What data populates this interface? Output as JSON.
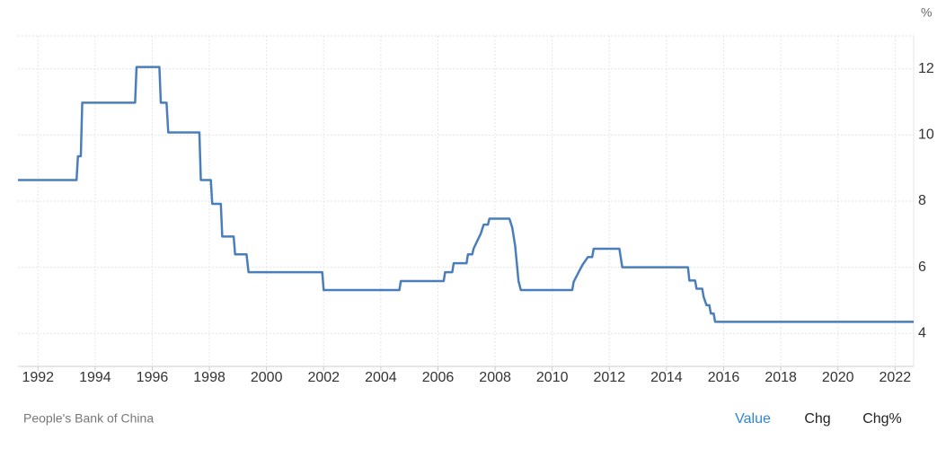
{
  "chart_data": {
    "type": "line",
    "y_unit": "%",
    "source": "People's Bank of China",
    "tabs": [
      "Value",
      "Chg",
      "Chg%"
    ],
    "xlim": [
      1991.3,
      2022.65
    ],
    "ylim": [
      3,
      13
    ],
    "xticks": [
      1992,
      1994,
      1996,
      1998,
      2000,
      2002,
      2004,
      2006,
      2008,
      2010,
      2012,
      2014,
      2016,
      2018,
      2020,
      2022
    ],
    "yticks": [
      4,
      6,
      8,
      10,
      12
    ],
    "grid": true,
    "series": [
      {
        "color": "#4a7ebb",
        "x": [
          1991.3,
          1993.35,
          1993.4,
          1993.5,
          1993.55,
          1995.4,
          1995.45,
          1996.25,
          1996.3,
          1996.5,
          1996.56,
          1997.65,
          1997.7,
          1998.05,
          1998.1,
          1998.4,
          1998.45,
          1998.85,
          1998.9,
          1999.3,
          1999.37,
          2001.95,
          2002.0,
          2004.65,
          2004.7,
          2006.2,
          2006.25,
          2006.5,
          2006.55,
          2007.0,
          2007.05,
          2007.2,
          2007.25,
          2007.4,
          2007.5,
          2007.6,
          2007.75,
          2007.8,
          2008.5,
          2008.6,
          2008.7,
          2008.82,
          2008.9,
          2010.7,
          2010.75,
          2010.9,
          2011.05,
          2011.25,
          2011.4,
          2011.45,
          2012.35,
          2012.45,
          2014.75,
          2014.8,
          2015.0,
          2015.05,
          2015.25,
          2015.3,
          2015.4,
          2015.5,
          2015.55,
          2015.65,
          2015.7,
          2022.65
        ],
        "values": [
          8.64,
          8.64,
          9.36,
          9.36,
          10.98,
          10.98,
          12.06,
          12.06,
          10.98,
          10.98,
          10.08,
          10.08,
          8.64,
          8.64,
          7.92,
          7.92,
          6.93,
          6.93,
          6.39,
          6.39,
          5.85,
          5.85,
          5.31,
          5.31,
          5.58,
          5.58,
          5.85,
          5.85,
          6.12,
          6.12,
          6.39,
          6.39,
          6.57,
          6.84,
          7.02,
          7.29,
          7.29,
          7.47,
          7.47,
          7.2,
          6.66,
          5.58,
          5.31,
          5.31,
          5.56,
          5.81,
          6.06,
          6.31,
          6.31,
          6.56,
          6.56,
          6.0,
          6.0,
          5.6,
          5.6,
          5.35,
          5.35,
          5.1,
          4.85,
          4.85,
          4.6,
          4.6,
          4.35,
          4.35
        ]
      }
    ]
  }
}
